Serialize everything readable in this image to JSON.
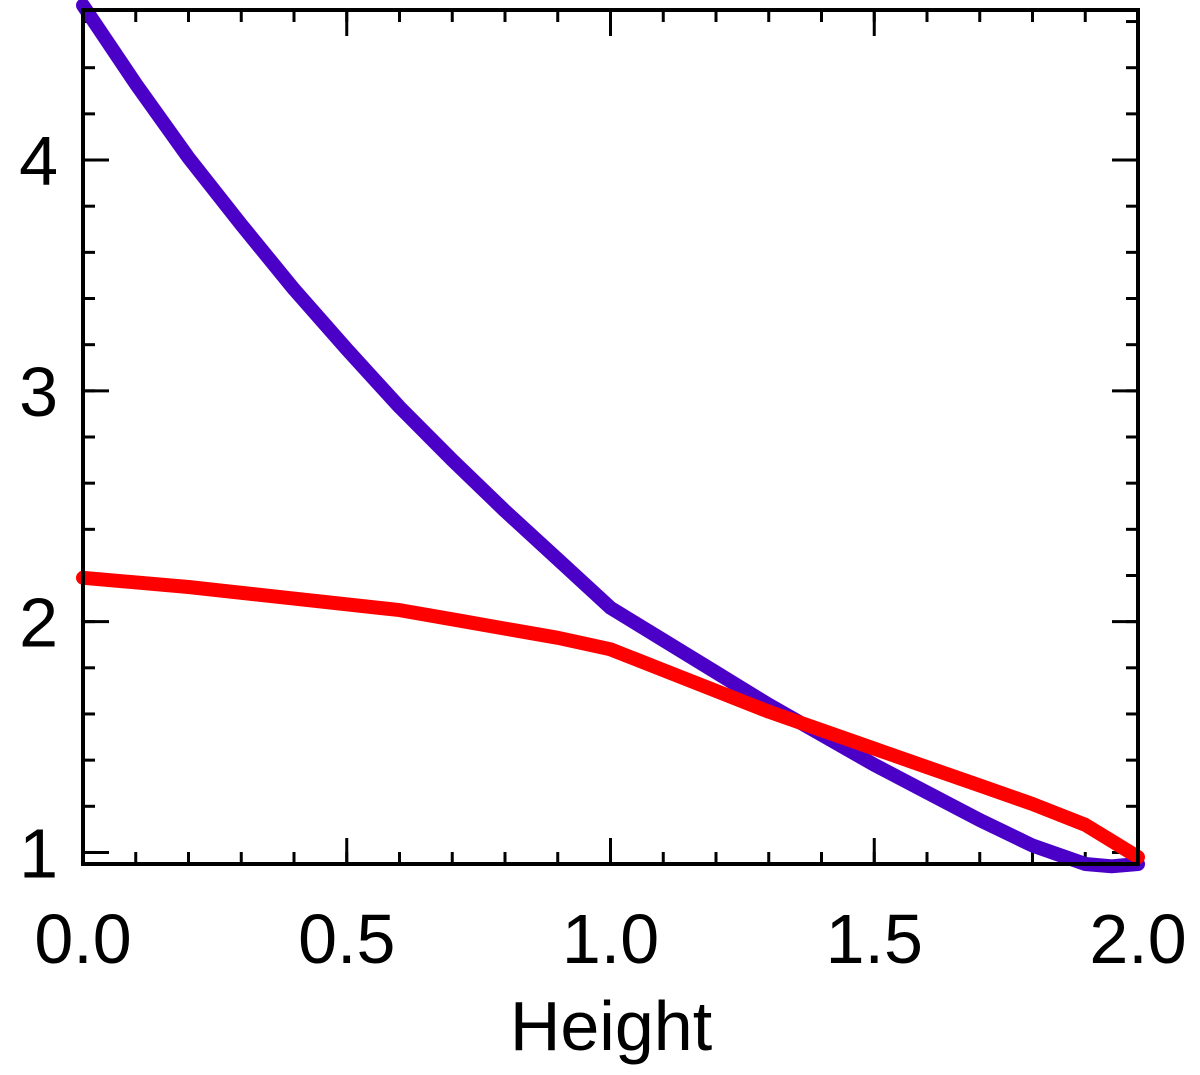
{
  "chart_data": {
    "type": "line",
    "title": "",
    "xlabel": "Height",
    "ylabel": "",
    "xlim": [
      0.0,
      2.0
    ],
    "ylim": [
      0.95,
      4.65
    ],
    "xticks": [
      {
        "value": 0.0,
        "label": "0.0"
      },
      {
        "value": 0.5,
        "label": "0.5"
      },
      {
        "value": 1.0,
        "label": "1.0"
      },
      {
        "value": 1.5,
        "label": "1.5"
      },
      {
        "value": 2.0,
        "label": "2.0"
      }
    ],
    "yticks": [
      {
        "value": 1,
        "label": "1"
      },
      {
        "value": 2,
        "label": "2"
      },
      {
        "value": 3,
        "label": "3"
      },
      {
        "value": 4,
        "label": "4"
      }
    ],
    "x_minor_step": 0.1,
    "y_minor_step": 0.2,
    "grid": false,
    "series": [
      {
        "color": "#4b00c8",
        "x": [
          0.0,
          0.1,
          0.2,
          0.3,
          0.4,
          0.5,
          0.6,
          0.7,
          0.8,
          0.9,
          1.0,
          1.1,
          1.2,
          1.3,
          1.4,
          1.5,
          1.6,
          1.7,
          1.8,
          1.9,
          1.95,
          2.0
        ],
        "y": [
          4.67,
          4.33,
          4.01,
          3.72,
          3.44,
          3.18,
          2.93,
          2.7,
          2.48,
          2.27,
          2.06,
          1.92,
          1.78,
          1.64,
          1.51,
          1.38,
          1.26,
          1.14,
          1.03,
          0.95,
          0.94,
          0.95
        ]
      },
      {
        "color": "#ff0000",
        "x": [
          0.0,
          0.2,
          0.4,
          0.6,
          0.7,
          0.8,
          0.9,
          1.0,
          1.1,
          1.2,
          1.3,
          1.4,
          1.5,
          1.6,
          1.7,
          1.8,
          1.9,
          1.95,
          2.0
        ],
        "y": [
          2.19,
          2.15,
          2.1,
          2.05,
          2.01,
          1.97,
          1.93,
          1.88,
          1.79,
          1.7,
          1.61,
          1.53,
          1.45,
          1.37,
          1.29,
          1.21,
          1.12,
          1.05,
          0.98
        ]
      }
    ]
  }
}
